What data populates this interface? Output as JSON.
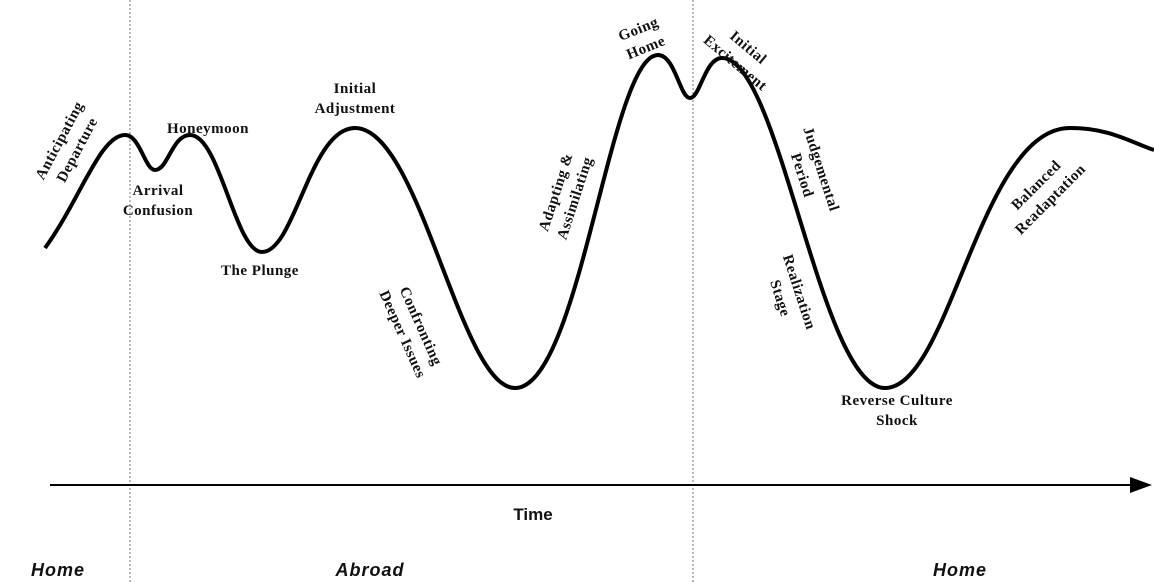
{
  "title_labels": [
    {
      "lines": [
        "Anticipating",
        "Departure"
      ]
    },
    {
      "lines": [
        "Arrival",
        "Confusion"
      ]
    },
    {
      "lines": [
        "Honeymoon"
      ]
    },
    {
      "lines": [
        "The Plunge"
      ]
    },
    {
      "lines": [
        "Initial",
        "Adjustment"
      ]
    },
    {
      "lines": [
        "Confronting",
        "Deeper Issues"
      ]
    },
    {
      "lines": [
        "Adapting &",
        "Assimilating"
      ]
    },
    {
      "lines": [
        "Going",
        "Home"
      ]
    },
    {
      "lines": [
        "Initial",
        "Excitement"
      ]
    },
    {
      "lines": [
        "Judgemental",
        "Period"
      ]
    },
    {
      "lines": [
        "Realization",
        "Stage"
      ]
    },
    {
      "lines": [
        "Reverse Culture",
        "Shock"
      ]
    },
    {
      "lines": [
        "Balanced",
        "Readaptation"
      ]
    }
  ],
  "axis_label": "Time",
  "phases": [
    "Home",
    "Abroad",
    "Home"
  ]
}
